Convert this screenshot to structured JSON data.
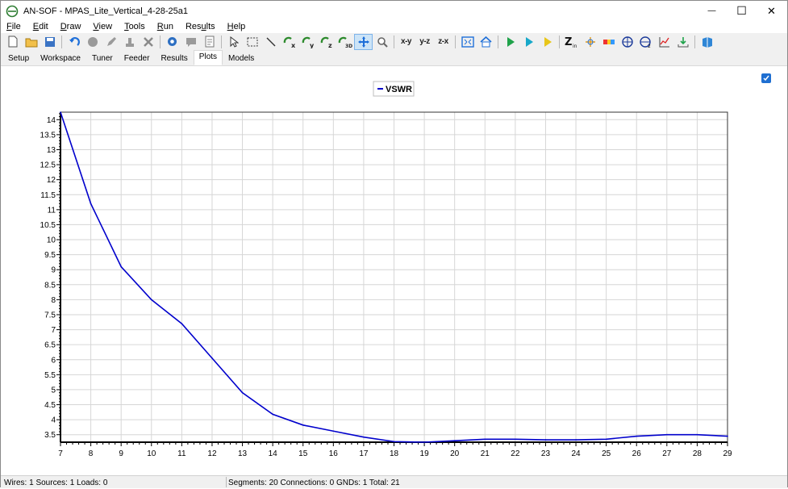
{
  "window": {
    "app_name": "AN-SOF",
    "separator": " - ",
    "title": "MPAS_Lite_Vertical_4-28-25a1",
    "minimize_glyph": "—",
    "maximize_glyph": "☐",
    "close_glyph": "✕"
  },
  "menu": [
    {
      "pre": "",
      "ul": "F",
      "post": "ile"
    },
    {
      "pre": "",
      "ul": "E",
      "post": "dit"
    },
    {
      "pre": "",
      "ul": "D",
      "post": "raw"
    },
    {
      "pre": "",
      "ul": "V",
      "post": "iew"
    },
    {
      "pre": "",
      "ul": "T",
      "post": "ools"
    },
    {
      "pre": "",
      "ul": "R",
      "post": "un"
    },
    {
      "pre": "Res",
      "ul": "u",
      "post": "lts"
    },
    {
      "pre": "",
      "ul": "H",
      "post": "elp"
    }
  ],
  "toolbar": {
    "view_xy": "x-y",
    "view_yz": "y-z",
    "view_zx": "z-x",
    "icons": [
      "new-file-icon",
      "open-folder-icon",
      "save-icon",
      "undo-icon",
      "stop-icon",
      "pencil-icon",
      "stamp-icon",
      "delete-icon",
      "settings-gear-icon",
      "comment-icon",
      "notes-icon",
      "select-arrow-icon",
      "select-rect-icon",
      "line-icon",
      "rotate-x-icon",
      "rotate-y-icon",
      "rotate-z-icon",
      "rotate-3d-icon",
      "pan-icon",
      "zoom-icon",
      "fit-view-icon",
      "home-view-icon",
      "run-icon",
      "run-step-icon",
      "run-yellow-icon",
      "impedance-icon",
      "currents-icon",
      "radiation-icon",
      "farfield-icon",
      "nearfield-icon",
      "plot-icon",
      "export-icon",
      "book-icon"
    ]
  },
  "tabs": [
    "Setup",
    "Workspace",
    "Tuner",
    "Feeder",
    "Results",
    "Plots",
    "Models"
  ],
  "active_tab": "Plots",
  "chart_data": {
    "type": "line",
    "legend_position": "top-center",
    "grid": true,
    "xlim": [
      7,
      29
    ],
    "ylim": [
      3.25,
      14.25
    ],
    "x_ticks": [
      7,
      8,
      9,
      10,
      11,
      12,
      13,
      14,
      15,
      16,
      17,
      18,
      19,
      20,
      21,
      22,
      23,
      24,
      25,
      26,
      27,
      28,
      29
    ],
    "y_ticks": [
      3.5,
      4,
      4.5,
      5,
      5.5,
      6,
      6.5,
      7,
      7.5,
      8,
      8.5,
      9,
      9.5,
      10,
      10.5,
      11,
      11.5,
      12,
      12.5,
      13,
      13.5,
      14
    ],
    "series": [
      {
        "name": "VSWR",
        "color": "#0000cc",
        "x": [
          7,
          8,
          9,
          10,
          11,
          12,
          13,
          14,
          15,
          16,
          17,
          18,
          19,
          20,
          21,
          22,
          23,
          24,
          25,
          26,
          27,
          28,
          29
        ],
        "y": [
          14.25,
          11.2,
          9.1,
          8.0,
          7.2,
          6.05,
          4.9,
          4.18,
          3.82,
          3.62,
          3.42,
          3.27,
          3.25,
          3.3,
          3.35,
          3.35,
          3.33,
          3.33,
          3.35,
          3.45,
          3.5,
          3.5,
          3.45
        ]
      }
    ]
  },
  "status": {
    "left": "Wires: 1  Sources: 1  Loads: 0",
    "right": "Segments: 20  Connections: 0  GNDs: 1  Total: 21"
  }
}
